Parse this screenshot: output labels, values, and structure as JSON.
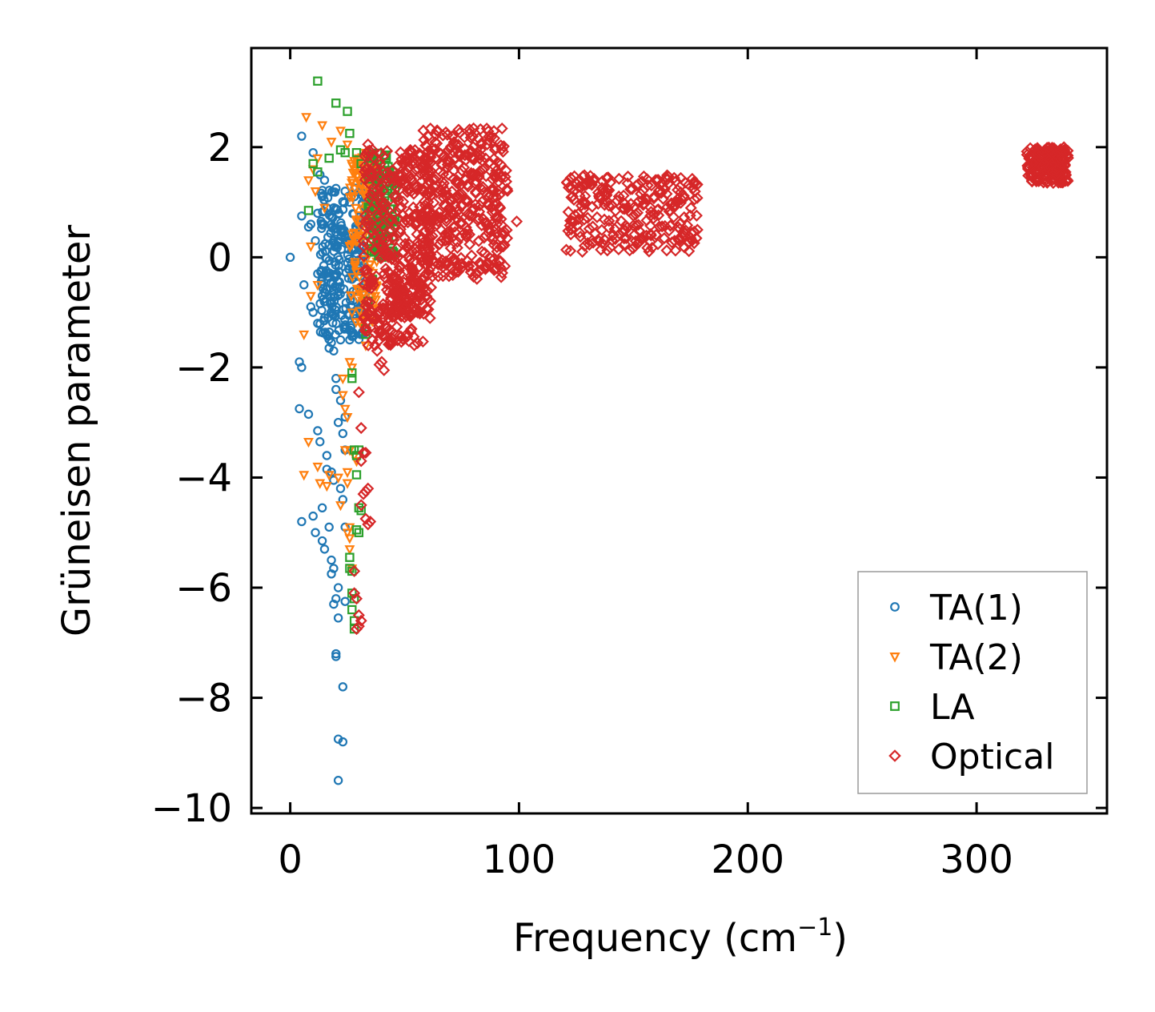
{
  "chart_data": {
    "type": "scatter",
    "title": "",
    "xlabel": "Frequency (cm",
    "xlabel_sup": "−1",
    "xlabel_end": ")",
    "ylabel": "Grüneisen parameter",
    "xlim": [
      -17,
      357
    ],
    "ylim": [
      -10.1,
      3.8
    ],
    "xticks": [
      0,
      100,
      200,
      300
    ],
    "xtick_labels": [
      "0",
      "100",
      "200",
      "300"
    ],
    "yticks": [
      2,
      0,
      -2,
      -4,
      -6,
      -8,
      -10
    ],
    "ytick_labels": [
      "2",
      "0",
      "−2",
      "−4",
      "−6",
      "−8",
      "−10"
    ],
    "legend_position": "lower-right",
    "series": [
      {
        "name": "TA(1)",
        "marker": "circle",
        "color": "#1f77b4",
        "points": [
          [
            0,
            0
          ],
          [
            5,
            2.2
          ],
          [
            5,
            0.75
          ],
          [
            10,
            1.9
          ],
          [
            8,
            0.55
          ],
          [
            12,
            0.8
          ],
          [
            6,
            -0.5
          ],
          [
            9,
            -0.9
          ],
          [
            4,
            -1.9
          ],
          [
            5,
            -2.0
          ],
          [
            4,
            -2.75
          ],
          [
            8,
            -2.85
          ],
          [
            12,
            -3.15
          ],
          [
            13,
            -3.35
          ],
          [
            16,
            -3.6
          ],
          [
            16,
            -3.85
          ],
          [
            18,
            -3.9
          ],
          [
            19,
            -4.05
          ],
          [
            14,
            -4.55
          ],
          [
            17,
            -4.9
          ],
          [
            5,
            -4.8
          ],
          [
            10,
            -4.7
          ],
          [
            11,
            -5.0
          ],
          [
            14,
            -5.15
          ],
          [
            15,
            -5.3
          ],
          [
            18,
            -5.5
          ],
          [
            18,
            -5.75
          ],
          [
            19,
            -5.65
          ],
          [
            21,
            -6.0
          ],
          [
            20,
            -6.2
          ],
          [
            19,
            -6.3
          ],
          [
            21,
            -6.55
          ],
          [
            24,
            -6.25
          ],
          [
            20,
            -7.2
          ],
          [
            20,
            -7.25
          ],
          [
            23,
            -7.8
          ],
          [
            21,
            -8.75
          ],
          [
            23,
            -8.8
          ],
          [
            21,
            -9.5
          ],
          [
            19,
            -1.7
          ],
          [
            20,
            -2.2
          ],
          [
            22,
            -2.6
          ],
          [
            21,
            -3.0
          ],
          [
            23,
            -3.2
          ],
          [
            24,
            -3.5
          ],
          [
            22,
            -4.2
          ],
          [
            23,
            -4.4
          ],
          [
            24,
            -4.9
          ],
          [
            20,
            -2.4
          ],
          [
            24,
            -2.9
          ],
          [
            13,
            1.5
          ],
          [
            15,
            1.4
          ],
          [
            14,
            1.1
          ],
          [
            16,
            0.9
          ],
          [
            11,
            0.3
          ],
          [
            9,
            0.6
          ],
          [
            12,
            -0.3
          ],
          [
            14,
            -0.7
          ],
          [
            10,
            -1.0
          ],
          [
            12,
            -1.2
          ],
          [
            16,
            -1.4
          ],
          [
            18,
            -1.55
          ],
          [
            17,
            -1.65
          ],
          [
            22,
            -1.5
          ],
          [
            26,
            -1.5
          ],
          [
            20,
            1.25
          ],
          [
            24,
            1.2
          ],
          [
            28,
            1.1
          ],
          [
            26,
            1.0
          ],
          [
            18,
            0.6
          ],
          [
            25,
            0.3
          ]
        ],
        "dense_regions": [
          {
            "x": [
              13,
              33
            ],
            "y": [
              -1.5,
              1.3
            ],
            "count": 260
          }
        ]
      },
      {
        "name": "TA(2)",
        "marker": "triangle-down",
        "color": "#ff7f0e",
        "points": [
          [
            7,
            2.55
          ],
          [
            14,
            2.4
          ],
          [
            22,
            2.3
          ],
          [
            18,
            2.1
          ],
          [
            25,
            2.05
          ],
          [
            10,
            1.6
          ],
          [
            12,
            1.8
          ],
          [
            8,
            1.4
          ],
          [
            11,
            1.2
          ],
          [
            15,
            0.9
          ],
          [
            9,
            0.2
          ],
          [
            12,
            -0.5
          ],
          [
            9,
            -0.7
          ],
          [
            6,
            -1.4
          ],
          [
            8,
            -3.35
          ],
          [
            6,
            -3.95
          ],
          [
            12,
            -3.8
          ],
          [
            13,
            -4.1
          ],
          [
            16,
            -4.15
          ],
          [
            17,
            -3.95
          ],
          [
            21,
            -4.0
          ],
          [
            25,
            -4.1
          ],
          [
            25,
            -3.9
          ],
          [
            22,
            -4.5
          ],
          [
            26,
            -4.9
          ],
          [
            26,
            -5.1
          ],
          [
            26,
            -5.3
          ],
          [
            27,
            -5.65
          ],
          [
            25,
            -5.0
          ],
          [
            23,
            -2.5
          ],
          [
            24,
            -2.75
          ],
          [
            25,
            -2.9
          ],
          [
            23,
            -2.2
          ],
          [
            26,
            -3.5
          ],
          [
            24,
            -3.5
          ],
          [
            27,
            -2.0
          ],
          [
            26,
            -1.9
          ],
          [
            28,
            -3.6
          ],
          [
            29,
            -3.7
          ],
          [
            27,
            -1.0
          ],
          [
            30,
            -0.6
          ],
          [
            31,
            0.4
          ],
          [
            33,
            1.9
          ],
          [
            34,
            1.6
          ],
          [
            33,
            1.2
          ],
          [
            34,
            -0.2
          ],
          [
            32,
            -0.8
          ],
          [
            31,
            -1.2
          ],
          [
            33,
            -1.6
          ],
          [
            27,
            1.4
          ],
          [
            30,
            1.8
          ],
          [
            32,
            1.5
          ]
        ],
        "dense_regions": [
          {
            "x": [
              26,
              38
            ],
            "y": [
              -1.2,
              2.0
            ],
            "count": 130
          }
        ]
      },
      {
        "name": "LA",
        "marker": "square",
        "color": "#2ca02c",
        "points": [
          [
            12,
            3.2
          ],
          [
            20,
            2.8
          ],
          [
            25,
            2.65
          ],
          [
            26,
            2.25
          ],
          [
            17,
            1.8
          ],
          [
            10,
            1.7
          ],
          [
            12,
            1.55
          ],
          [
            8,
            0.85
          ],
          [
            24,
            1.9
          ],
          [
            22,
            1.95
          ],
          [
            29,
            1.9
          ],
          [
            31,
            1.7
          ],
          [
            27,
            -2.1
          ],
          [
            27,
            -2.2
          ],
          [
            28,
            -3.5
          ],
          [
            29,
            -3.6
          ],
          [
            30,
            -3.5
          ],
          [
            29,
            -3.95
          ],
          [
            30,
            -4.55
          ],
          [
            31,
            -4.6
          ],
          [
            29,
            -4.95
          ],
          [
            30,
            -5.0
          ],
          [
            26,
            -5.45
          ],
          [
            26,
            -5.65
          ],
          [
            27,
            -5.7
          ],
          [
            27,
            -6.1
          ],
          [
            28,
            -6.2
          ],
          [
            27,
            -6.4
          ],
          [
            28,
            -6.6
          ],
          [
            28,
            -6.75
          ],
          [
            45,
            0.05
          ],
          [
            43,
            0.3
          ],
          [
            44,
            0.1
          ],
          [
            40,
            0.5
          ],
          [
            36,
            -0.4
          ],
          [
            34,
            -0.8
          ],
          [
            33,
            -1.3
          ],
          [
            33,
            -1.4
          ]
        ],
        "dense_regions": [
          {
            "x": [
              34,
              46
            ],
            "y": [
              0.0,
              1.9
            ],
            "count": 110
          }
        ]
      },
      {
        "name": "Optical",
        "marker": "diamond",
        "color": "#d62728",
        "points": [
          [
            34,
            2.05
          ],
          [
            36,
            1.95
          ],
          [
            30,
            -2.45
          ],
          [
            31,
            -3.1
          ],
          [
            32,
            -3.55
          ],
          [
            33,
            -3.55
          ],
          [
            31,
            -3.7
          ],
          [
            32,
            -4.3
          ],
          [
            33,
            -4.25
          ],
          [
            34,
            -4.2
          ],
          [
            31,
            -4.5
          ],
          [
            33,
            -4.75
          ],
          [
            34,
            -4.85
          ],
          [
            35,
            -4.8
          ],
          [
            28,
            -5.7
          ],
          [
            28,
            -6.1
          ],
          [
            29,
            -6.2
          ],
          [
            30,
            -6.5
          ],
          [
            31,
            -6.6
          ],
          [
            30,
            -6.7
          ],
          [
            29,
            -6.75
          ],
          [
            38,
            -1.7
          ],
          [
            40,
            -1.9
          ],
          [
            41,
            -2.05
          ],
          [
            39,
            -1.95
          ],
          [
            37,
            -1.6
          ],
          [
            36,
            -1.5
          ],
          [
            99,
            0.65
          ],
          [
            92,
            0.35
          ],
          [
            83,
            -0.1
          ],
          [
            178,
            0.5
          ],
          [
            175,
            0.35
          ],
          [
            170,
            0.3
          ],
          [
            172,
            0.45
          ],
          [
            168,
            0.3
          ]
        ],
        "dense_regions": [
          {
            "x": [
              32,
              62
            ],
            "y": [
              -1.6,
              1.95
            ],
            "count": 420
          },
          {
            "x": [
              44,
              58
            ],
            "y": [
              -1.1,
              -0.4
            ],
            "count": 60
          },
          {
            "x": [
              58,
              95
            ],
            "y": [
              -0.4,
              2.35
            ],
            "count": 380
          },
          {
            "x": [
              120,
              178
            ],
            "y": [
              0.1,
              1.5
            ],
            "count": 260
          },
          {
            "x": [
              322,
              340
            ],
            "y": [
              1.35,
              2.0
            ],
            "count": 180
          }
        ]
      }
    ]
  }
}
